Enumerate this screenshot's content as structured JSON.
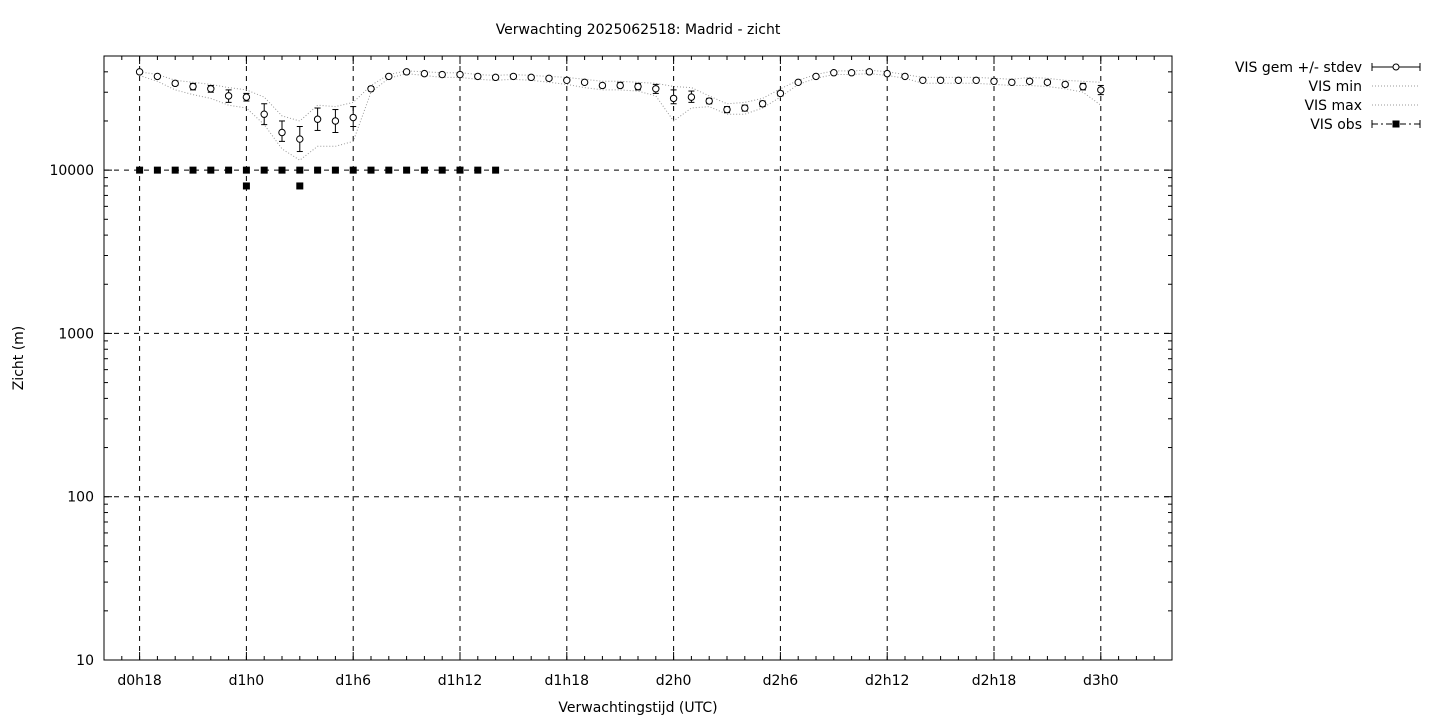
{
  "chart_data": {
    "type": "line",
    "title": "Verwachting 2025062518: Madrid - zicht",
    "xlabel": "Verwachtingstijd (UTC)",
    "ylabel": "Zicht (m)",
    "x_units": "forecast lead time (hours since d0h0)",
    "xlim": [
      16,
      76
    ],
    "ylim": [
      10,
      50000
    ],
    "yscale": "log",
    "grid": true,
    "x_ticks": [
      {
        "x": 18,
        "label": "d0h18"
      },
      {
        "x": 24,
        "label": "d1h0"
      },
      {
        "x": 30,
        "label": "d1h6"
      },
      {
        "x": 36,
        "label": "d1h12"
      },
      {
        "x": 42,
        "label": "d1h18"
      },
      {
        "x": 48,
        "label": "d2h0"
      },
      {
        "x": 54,
        "label": "d2h6"
      },
      {
        "x": 60,
        "label": "d2h12"
      },
      {
        "x": 66,
        "label": "d2h18"
      },
      {
        "x": 72,
        "label": "d3h0"
      }
    ],
    "y_ticks": [
      {
        "y": 10,
        "label": "10"
      },
      {
        "y": 100,
        "label": "100"
      },
      {
        "y": 1000,
        "label": "1000"
      },
      {
        "y": 10000,
        "label": "10000"
      }
    ],
    "legend": {
      "position": "outside-top-right",
      "entries": [
        {
          "label": "VIS gem +/- stdev",
          "style": "errorbar-circle"
        },
        {
          "label": "VIS min",
          "style": "dotted"
        },
        {
          "label": "VIS max",
          "style": "dotted"
        },
        {
          "label": "VIS obs",
          "style": "dash-dot-square"
        }
      ]
    },
    "series": [
      {
        "name": "VIS gem +/- stdev",
        "x": [
          18,
          19,
          20,
          21,
          22,
          23,
          24,
          25,
          26,
          27,
          28,
          29,
          30,
          31,
          32,
          33,
          34,
          35,
          36,
          37,
          38,
          39,
          40,
          41,
          42,
          43,
          44,
          45,
          46,
          47,
          48,
          49,
          50,
          51,
          52,
          53,
          54,
          55,
          56,
          57,
          58,
          59,
          60,
          61,
          62,
          63,
          64,
          65,
          66,
          67,
          68,
          69,
          70,
          71,
          72
        ],
        "y": [
          40000,
          37500,
          34000,
          32500,
          31500,
          28500,
          28000,
          22000,
          17000,
          15500,
          20500,
          20000,
          21000,
          31500,
          37500,
          40000,
          39000,
          38500,
          38500,
          37500,
          37000,
          37500,
          37000,
          36500,
          35500,
          34500,
          33000,
          33000,
          32500,
          31500,
          27500,
          28000,
          26500,
          23500,
          24000,
          25500,
          29500,
          34500,
          37500,
          39500,
          39500,
          40000,
          39000,
          37500,
          35500,
          35500,
          35500,
          35500,
          35000,
          34500,
          35000,
          34500,
          33500,
          32500,
          31000
        ],
        "err_low": [
          39000,
          37000,
          33000,
          31000,
          30000,
          26000,
          26500,
          19000,
          15000,
          13000,
          17500,
          17000,
          18500,
          30500,
          37000,
          39500,
          38500,
          38000,
          38000,
          37000,
          36500,
          37000,
          36500,
          36000,
          35000,
          34000,
          32000,
          32000,
          31000,
          29500,
          25500,
          26000,
          25500,
          22500,
          23000,
          24500,
          28500,
          34000,
          37000,
          39000,
          39000,
          39500,
          38500,
          37000,
          35000,
          35000,
          35000,
          35000,
          34500,
          34000,
          34000,
          33500,
          32500,
          31000,
          29000
        ],
        "err_high": [
          40500,
          38000,
          35000,
          34000,
          33000,
          31000,
          29500,
          25500,
          20000,
          18500,
          24000,
          23500,
          24500,
          32500,
          38000,
          40500,
          39500,
          39000,
          39000,
          38000,
          37500,
          38000,
          37500,
          37000,
          36000,
          35000,
          34000,
          34500,
          34000,
          33500,
          31000,
          30500,
          27500,
          24500,
          25000,
          26500,
          30500,
          35000,
          38000,
          40000,
          40000,
          40500,
          39500,
          38000,
          36000,
          36000,
          36000,
          36000,
          35500,
          35000,
          36000,
          35500,
          34500,
          34000,
          33000
        ]
      },
      {
        "name": "VIS min",
        "x": [
          18,
          19,
          20,
          21,
          22,
          23,
          24,
          25,
          26,
          27,
          28,
          29,
          30,
          31,
          32,
          33,
          34,
          35,
          36,
          37,
          38,
          39,
          40,
          41,
          42,
          43,
          44,
          45,
          46,
          47,
          48,
          49,
          50,
          51,
          52,
          53,
          54,
          55,
          56,
          57,
          58,
          59,
          60,
          61,
          62,
          63,
          64,
          65,
          66,
          67,
          68,
          69,
          70,
          71,
          72
        ],
        "y": [
          38000,
          35000,
          31000,
          29000,
          27500,
          25000,
          24000,
          19000,
          13500,
          11500,
          14000,
          14000,
          15000,
          30000,
          36500,
          39000,
          38000,
          37000,
          37000,
          36000,
          35500,
          36000,
          35500,
          34500,
          33500,
          32000,
          31000,
          31000,
          30500,
          28500,
          20000,
          24000,
          24500,
          22000,
          22000,
          24000,
          28000,
          33500,
          36500,
          38500,
          38500,
          39000,
          38000,
          36500,
          34000,
          34000,
          34000,
          34000,
          33500,
          33000,
          33000,
          32500,
          31500,
          30000,
          25000
        ]
      },
      {
        "name": "VIS max",
        "x": [
          18,
          19,
          20,
          21,
          22,
          23,
          24,
          25,
          26,
          27,
          28,
          29,
          30,
          31,
          32,
          33,
          34,
          35,
          36,
          37,
          38,
          39,
          40,
          41,
          42,
          43,
          44,
          45,
          46,
          47,
          48,
          49,
          50,
          51,
          52,
          53,
          54,
          55,
          56,
          57,
          58,
          59,
          60,
          61,
          62,
          63,
          64,
          65,
          66,
          67,
          68,
          69,
          70,
          71,
          72
        ],
        "y": [
          40000,
          38500,
          35500,
          34500,
          33500,
          32000,
          31000,
          28000,
          21500,
          20000,
          25000,
          24500,
          26000,
          33000,
          38500,
          40500,
          40000,
          39500,
          39500,
          38500,
          38000,
          38500,
          38000,
          37500,
          37000,
          36000,
          35000,
          35000,
          34500,
          34000,
          32500,
          32000,
          28500,
          25500,
          26000,
          27500,
          31500,
          35500,
          38500,
          40500,
          40500,
          41000,
          40000,
          38500,
          37000,
          37000,
          37000,
          37000,
          36500,
          36000,
          37000,
          36500,
          35500,
          35000,
          34500
        ]
      },
      {
        "name": "VIS obs",
        "x": [
          18,
          19,
          20,
          21,
          22,
          23,
          24,
          24,
          25,
          26,
          27,
          27,
          28,
          29,
          30,
          31,
          32,
          33,
          34,
          35,
          36,
          37,
          38
        ],
        "y": [
          10000,
          10000,
          10000,
          10000,
          10000,
          10000,
          10000,
          8000,
          10000,
          10000,
          10000,
          8000,
          10000,
          10000,
          10000,
          10000,
          10000,
          10000,
          10000,
          10000,
          10000,
          10000,
          10000
        ]
      }
    ]
  }
}
